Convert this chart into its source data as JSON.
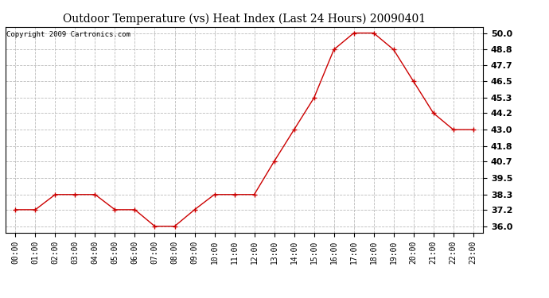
{
  "title": "Outdoor Temperature (vs) Heat Index (Last 24 Hours) 20090401",
  "copyright_text": "Copyright 2009 Cartronics.com",
  "x_labels": [
    "00:00",
    "01:00",
    "02:00",
    "03:00",
    "04:00",
    "05:00",
    "06:00",
    "07:00",
    "08:00",
    "09:00",
    "10:00",
    "11:00",
    "12:00",
    "13:00",
    "14:00",
    "15:00",
    "16:00",
    "17:00",
    "18:00",
    "19:00",
    "20:00",
    "21:00",
    "22:00",
    "23:00"
  ],
  "y_values": [
    37.2,
    37.2,
    38.3,
    38.3,
    38.3,
    37.2,
    37.2,
    36.0,
    36.0,
    37.2,
    38.3,
    38.3,
    38.3,
    40.7,
    43.0,
    45.3,
    48.8,
    50.0,
    50.0,
    48.8,
    46.5,
    44.2,
    43.0,
    43.0
  ],
  "y_ticks": [
    36.0,
    37.2,
    38.3,
    39.5,
    40.7,
    41.8,
    43.0,
    44.2,
    45.3,
    46.5,
    47.7,
    48.8,
    50.0
  ],
  "ylim_min": 35.55,
  "ylim_max": 50.45,
  "line_color": "#cc0000",
  "marker": "+",
  "marker_color": "#cc0000",
  "marker_size": 5,
  "marker_linewidth": 1.0,
  "grid_color": "#bbbbbb",
  "grid_linestyle": "--",
  "bg_color": "#ffffff",
  "plot_bg_color": "#ffffff",
  "title_fontsize": 10,
  "copyright_fontsize": 6.5,
  "tick_fontsize": 7,
  "ytick_fontsize": 8
}
